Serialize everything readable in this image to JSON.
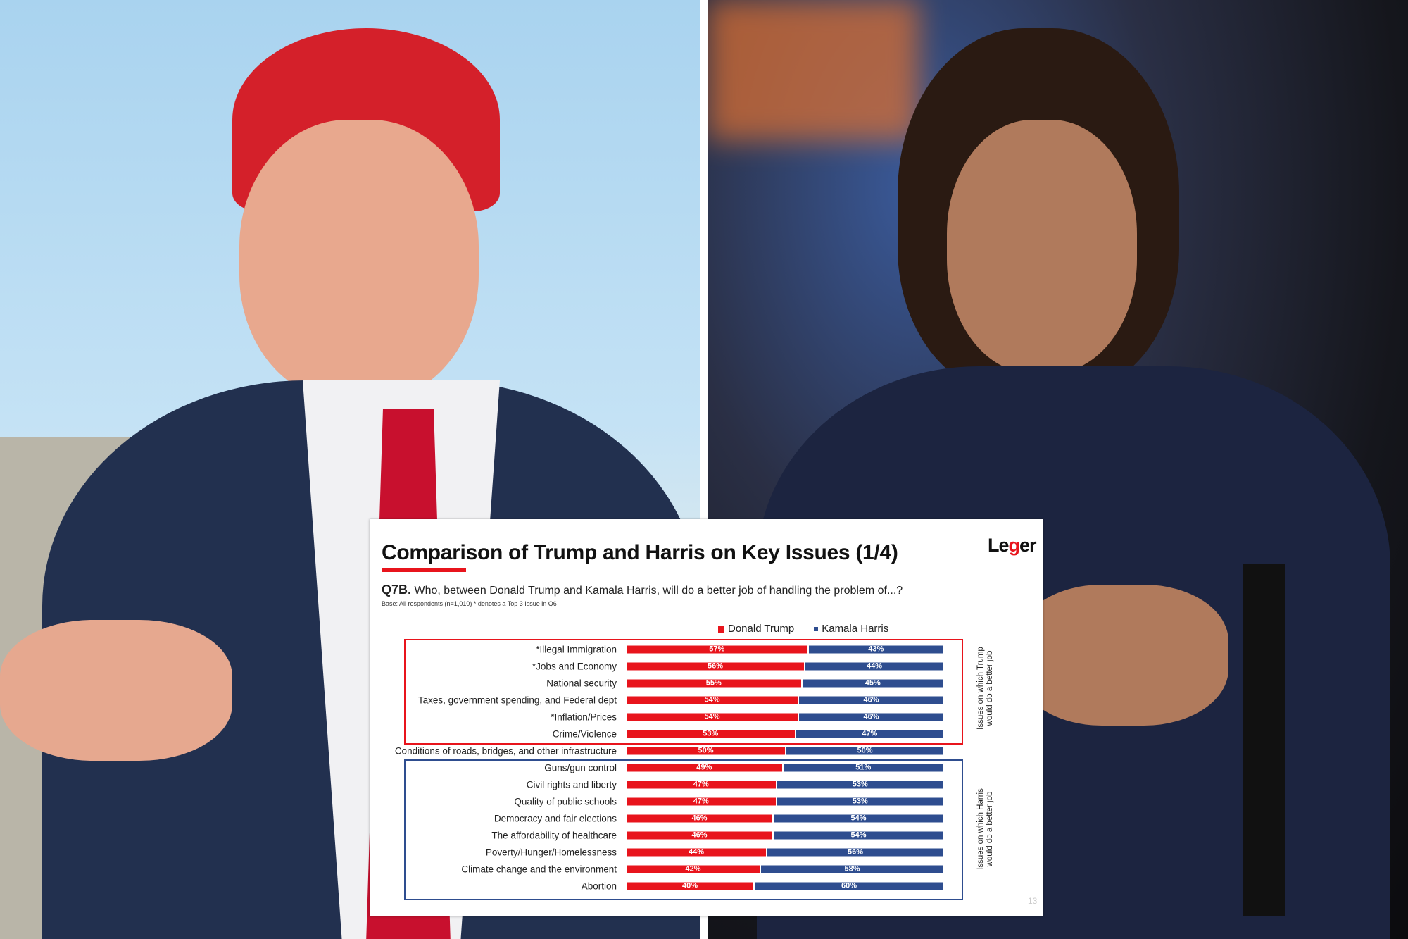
{
  "chart_data": {
    "type": "bar",
    "stacked": true,
    "orientation": "horizontal",
    "title": "Comparison of Trump and Harris on Key Issues (1/4)",
    "question_code": "Q7B.",
    "question": "Who, between Donald Trump and Kamala Harris, will do a better job of handling the problem of...?",
    "base_note": "Base: All respondents (n=1,010)  * denotes a Top 3 Issue in Q6",
    "legend_position": "top",
    "categories": [
      "*Illegal Immigration",
      "*Jobs and Economy",
      "National security",
      "Taxes, government spending, and Federal dept",
      "*Inflation/Prices",
      "Crime/Violence",
      "Conditions of roads, bridges, and other infrastructure",
      "Guns/gun control",
      "Civil rights and liberty",
      "Quality of public schools",
      "Democracy and fair elections",
      "The affordability of healthcare",
      "Poverty/Hunger/Homelessness",
      "Climate change and the environment",
      "Abortion"
    ],
    "series": [
      {
        "name": "Donald Trump",
        "color": "#e8141c",
        "values": [
          57,
          56,
          55,
          54,
          54,
          53,
          50,
          49,
          47,
          47,
          46,
          46,
          44,
          42,
          40
        ]
      },
      {
        "name": "Kamala Harris",
        "color": "#2e4d8f",
        "values": [
          43,
          44,
          45,
          46,
          46,
          47,
          50,
          51,
          53,
          53,
          54,
          54,
          56,
          58,
          60
        ]
      }
    ],
    "value_suffix": "%",
    "xlim": [
      0,
      100
    ],
    "grid": false,
    "groups": [
      {
        "label": "Issues on which Trump would do a better job",
        "color": "#e8141c"
      },
      {
        "label": "Issues on which Harris would do a better job",
        "color": "#2e4d8f"
      }
    ]
  },
  "brand": {
    "logo_text_1": "Le",
    "logo_text_g": "g",
    "logo_text_2": "er"
  },
  "page_number": "13"
}
